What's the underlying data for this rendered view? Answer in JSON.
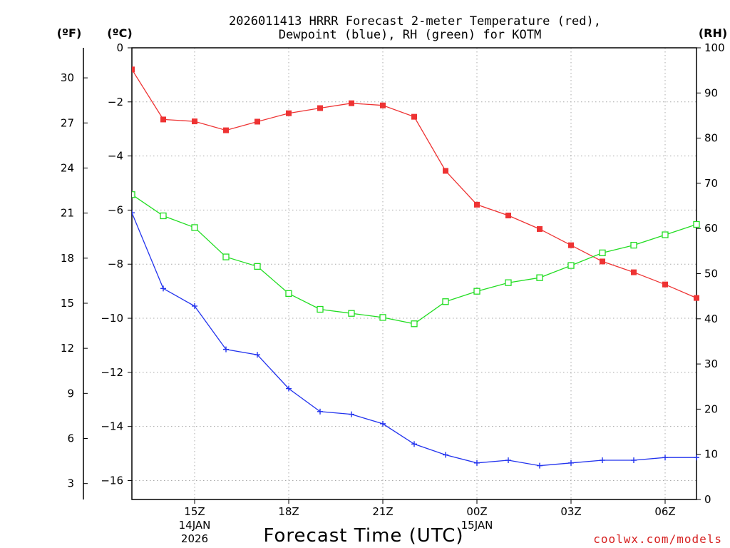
{
  "chart_data": {
    "type": "line",
    "title_line1": "2026011413 HRRR Forecast 2-meter Temperature (red),",
    "title_line2": "Dewpoint (blue), RH (green) for KOTM",
    "xlabel": "Forecast Time (UTC)",
    "credit": "coolwx.com/models",
    "unit_f": "(ºF)",
    "unit_c": "(ºC)",
    "unit_rh": "(RH)",
    "x_hours": [
      13,
      14,
      15,
      16,
      17,
      18,
      19,
      20,
      21,
      22,
      23,
      24,
      25,
      26,
      27,
      28,
      29,
      30,
      31
    ],
    "xlim": [
      13,
      31
    ],
    "x_ticks": [
      {
        "hour": 15,
        "label": "15Z"
      },
      {
        "hour": 18,
        "label": "18Z"
      },
      {
        "hour": 21,
        "label": "21Z"
      },
      {
        "hour": 24,
        "label": "00Z"
      },
      {
        "hour": 27,
        "label": "03Z"
      },
      {
        "hour": 30,
        "label": "06Z"
      }
    ],
    "date_labels": [
      {
        "hour": 15,
        "line1": "14JAN",
        "line2": "2026"
      },
      {
        "hour": 24,
        "line1": "15JAN",
        "line2": ""
      }
    ],
    "c_axis": {
      "range": [
        0,
        -16.7
      ],
      "ticks": [
        0,
        -2,
        -4,
        -6,
        -8,
        -10,
        -12,
        -14,
        -16
      ]
    },
    "f_axis": {
      "ticks": [
        30,
        27,
        24,
        21,
        18,
        15,
        12,
        9,
        6,
        3
      ]
    },
    "rh_axis": {
      "range": [
        0,
        100
      ],
      "ticks": [
        0,
        10,
        20,
        30,
        40,
        50,
        60,
        70,
        80,
        90,
        100
      ]
    },
    "series": [
      {
        "name": "Temperature",
        "color": "#ee3333",
        "marker": "filled-square",
        "axis": "c",
        "values": [
          -0.8,
          -2.65,
          -2.72,
          -3.05,
          -2.73,
          -2.42,
          -2.23,
          -2.05,
          -2.13,
          -2.55,
          -4.55,
          -5.8,
          -6.2,
          -6.7,
          -7.3,
          -7.9,
          -8.3,
          -8.75,
          -9.25
        ]
      },
      {
        "name": "Dewpoint",
        "color": "#2233ee",
        "marker": "plus",
        "axis": "c",
        "values": [
          -6.1,
          -8.9,
          -9.55,
          -11.15,
          -11.35,
          -12.6,
          -13.45,
          -13.55,
          -13.9,
          -14.65,
          -15.05,
          -15.35,
          -15.25,
          -15.45,
          -15.35,
          -15.25,
          -15.25,
          -15.15,
          -15.15
        ]
      },
      {
        "name": "RH",
        "color": "#22dd22",
        "marker": "open-square",
        "axis": "rh",
        "values": [
          67.5,
          62.8,
          60.2,
          53.7,
          51.6,
          45.6,
          42.1,
          41.2,
          40.3,
          38.9,
          43.8,
          46.1,
          48.0,
          49.1,
          51.8,
          54.6,
          56.3,
          58.6,
          60.9
        ]
      }
    ]
  }
}
